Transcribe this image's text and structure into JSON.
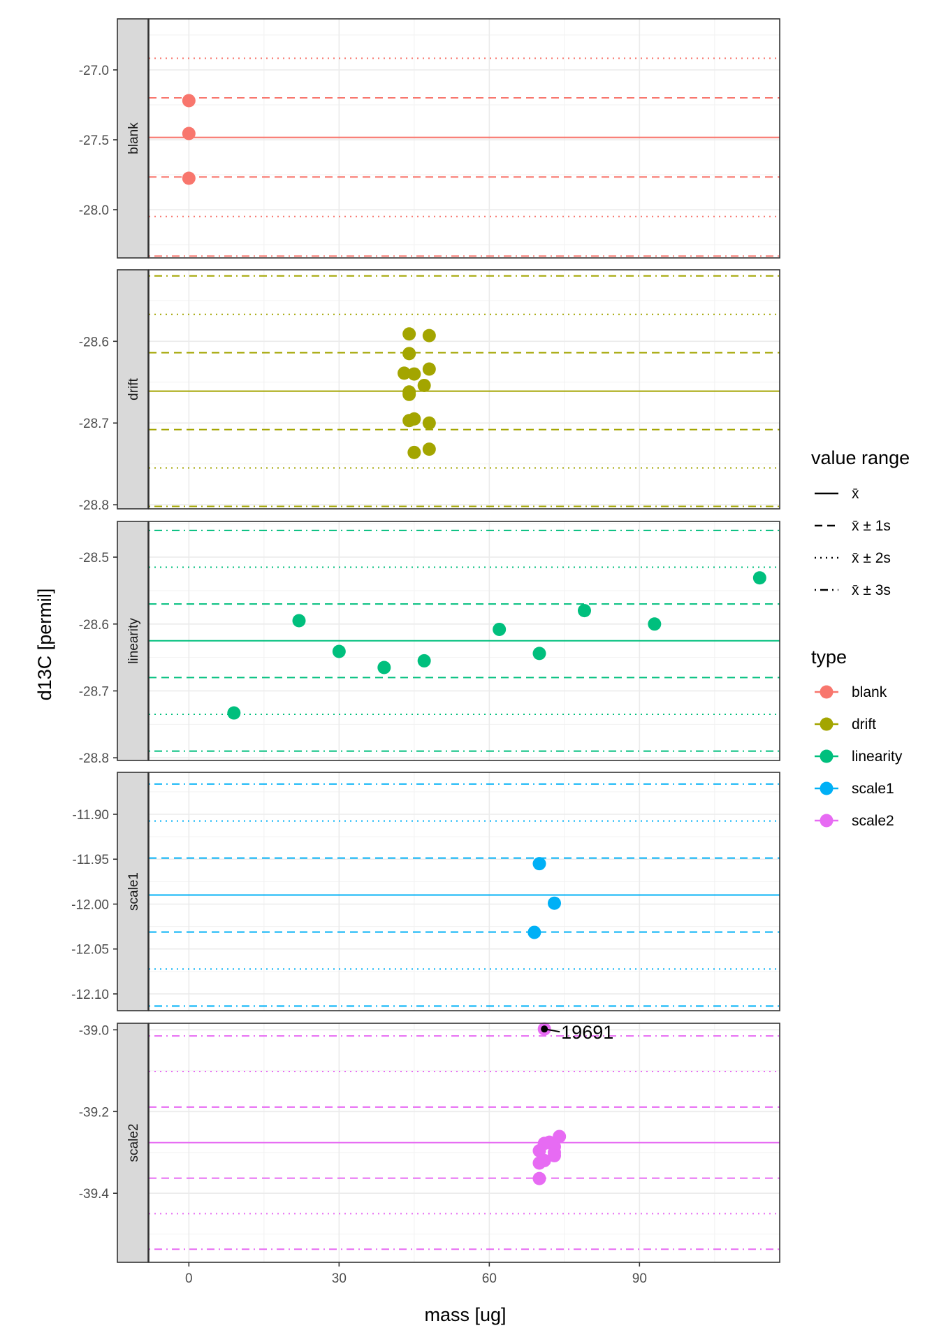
{
  "chart_data": {
    "type": "scatter",
    "layout": "faceted by type (rows, free y scales)",
    "xlabel": "mass [ug]",
    "ylabel": "d13C [permil]",
    "x_range": [
      -8,
      118
    ],
    "x_ticks": [
      0,
      30,
      60,
      90
    ],
    "grid": true,
    "legend_position": "right",
    "legends": {
      "value_range": {
        "title": "value range",
        "entries": [
          {
            "label": "x̄",
            "linetype": "solid"
          },
          {
            "label": "x̄ ± 1s",
            "linetype": "dashed"
          },
          {
            "label": "x̄ ± 2s",
            "linetype": "dotted"
          },
          {
            "label": "x̄ ± 3s",
            "linetype": "dotdash"
          }
        ]
      },
      "type": {
        "title": "type",
        "entries": [
          {
            "label": "blank",
            "color": "#F8766D"
          },
          {
            "label": "drift",
            "color": "#A3A500"
          },
          {
            "label": "linearity",
            "color": "#00BF7D"
          },
          {
            "label": "scale1",
            "color": "#00B0F6"
          },
          {
            "label": "scale2",
            "color": "#E76BF3"
          }
        ]
      }
    },
    "facets": [
      {
        "name": "blank",
        "color": "#F8766D",
        "ylim": [
          -28.345,
          -26.635
        ],
        "y_ticks": [
          -27.0,
          -27.5,
          -28.0
        ],
        "y_tick_labels": [
          "-27.0",
          "-27.5",
          "-28.0"
        ],
        "mean": -27.483,
        "sd": 0.283,
        "points": [
          [
            0,
            -27.22
          ],
          [
            0,
            -27.455
          ],
          [
            0,
            -27.775
          ]
        ]
      },
      {
        "name": "drift",
        "color": "#A3A500",
        "ylim": [
          -28.805,
          -28.5125
        ],
        "y_ticks": [
          -28.6,
          -28.7,
          -28.8
        ],
        "y_tick_labels": [
          "-28.6",
          "-28.7",
          "-28.8"
        ],
        "mean": -28.661,
        "sd": 0.047,
        "points": [
          [
            44,
            -28.591
          ],
          [
            48,
            -28.593
          ],
          [
            44,
            -28.615
          ],
          [
            43,
            -28.639
          ],
          [
            45,
            -28.64
          ],
          [
            48,
            -28.634
          ],
          [
            47,
            -28.654
          ],
          [
            44,
            -28.662
          ],
          [
            44,
            -28.665
          ],
          [
            44,
            -28.697
          ],
          [
            45,
            -28.695
          ],
          [
            48,
            -28.7
          ],
          [
            45,
            -28.736
          ],
          [
            48,
            -28.732
          ]
        ]
      },
      {
        "name": "linearity",
        "color": "#00BF7D",
        "ylim": [
          -28.804,
          -28.4466
        ],
        "y_ticks": [
          -28.5,
          -28.6,
          -28.7,
          -28.8
        ],
        "y_tick_labels": [
          "-28.5",
          "-28.6",
          "-28.7",
          "-28.8"
        ],
        "mean": -28.625,
        "sd": 0.055,
        "points": [
          [
            9,
            -28.733
          ],
          [
            22,
            -28.595
          ],
          [
            30,
            -28.641
          ],
          [
            39,
            -28.665
          ],
          [
            47,
            -28.655
          ],
          [
            62,
            -28.608
          ],
          [
            70,
            -28.644
          ],
          [
            79,
            -28.58
          ],
          [
            93,
            -28.6
          ],
          [
            114,
            -28.531
          ]
        ]
      },
      {
        "name": "scale1",
        "color": "#00B0F6",
        "ylim": [
          -12.1187,
          -11.8533
        ],
        "y_ticks": [
          -11.9,
          -11.95,
          -12.0,
          -12.05,
          -12.1
        ],
        "y_tick_labels": [
          "-11.90",
          "-11.95",
          "-12.00",
          "-12.05",
          "-12.10"
        ],
        "mean": -11.9899,
        "sd": 0.0412,
        "points": [
          [
            70,
            -11.955
          ],
          [
            73,
            -11.999
          ],
          [
            69,
            -12.0315
          ]
        ]
      },
      {
        "name": "scale2",
        "color": "#E76BF3",
        "ylim": [
          -39.569,
          -38.984
        ],
        "y_ticks": [
          -39.0,
          -39.2,
          -39.4
        ],
        "y_tick_labels": [
          "-39.0",
          "-39.2",
          "-39.4"
        ],
        "mean": -39.276,
        "sd": 0.087,
        "points": [
          [
            71,
            -39.278
          ],
          [
            73,
            -39.286
          ],
          [
            74,
            -39.261
          ],
          [
            72,
            -39.275
          ],
          [
            70,
            -39.296
          ],
          [
            73,
            -39.3
          ],
          [
            73,
            -39.308
          ],
          [
            71,
            -39.32
          ],
          [
            70,
            -39.326
          ],
          [
            70,
            -39.364
          ]
        ],
        "outlier": {
          "x": 71,
          "y": -38.998,
          "label": "19691"
        }
      }
    ]
  }
}
